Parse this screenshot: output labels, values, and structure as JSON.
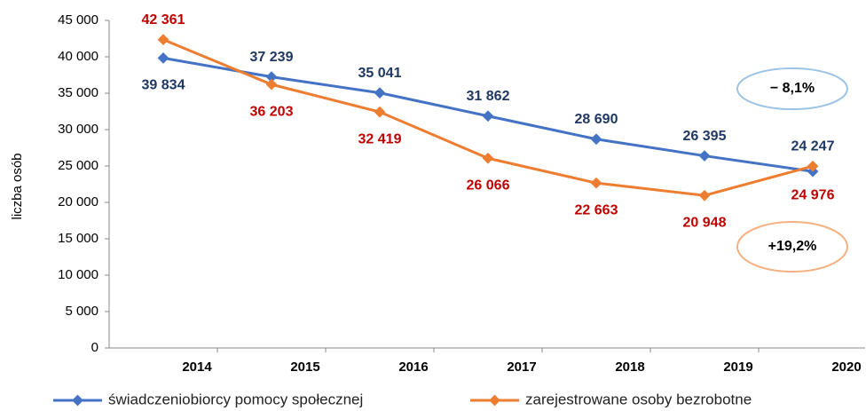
{
  "chart_data": {
    "type": "line",
    "y_label": "liczba osób",
    "categories": [
      "2014",
      "2015",
      "2016",
      "2017",
      "2018",
      "2019",
      "2020"
    ],
    "series": [
      {
        "name": "świadczeniobiorcy pomocy społecznej",
        "color": "#4472c4",
        "label_color": "#1f3864",
        "values": [
          39834,
          37239,
          35041,
          31862,
          28690,
          26395,
          24247
        ],
        "value_labels": [
          "39 834",
          "37 239",
          "35 041",
          "31 862",
          "28 690",
          "26 395",
          "24 247"
        ]
      },
      {
        "name": "zarejestrowane osoby bezrobotne",
        "color": "#ed7d31",
        "label_color": "#c00000",
        "values": [
          42361,
          36203,
          32419,
          26066,
          22663,
          20948,
          24976
        ],
        "value_labels": [
          "42 361",
          "36 203",
          "32 419",
          "26 066",
          "22 663",
          "20 948",
          "24 976"
        ]
      }
    ],
    "ylim": [
      0,
      45000
    ],
    "yticks": [
      0,
      {
        "value": 5000,
        "label": "5 000"
      },
      {
        "value": 10000,
        "label": "10 000"
      },
      {
        "value": 15000,
        "label": "15 000"
      },
      {
        "value": 20000,
        "label": "20 000"
      },
      {
        "value": 25000,
        "label": "25 000"
      },
      {
        "value": 30000,
        "label": "30 000"
      },
      {
        "value": 35000,
        "label": "35 000"
      },
      {
        "value": 40000,
        "label": "40 000"
      },
      {
        "value": 45000,
        "label": "45 000"
      }
    ],
    "grid": false,
    "legend": "bottom",
    "annotations": [
      {
        "text": "− 8,1%",
        "color": "#9dc3e6"
      },
      {
        "text": "+19,2%",
        "color": "#f4b183"
      }
    ]
  }
}
